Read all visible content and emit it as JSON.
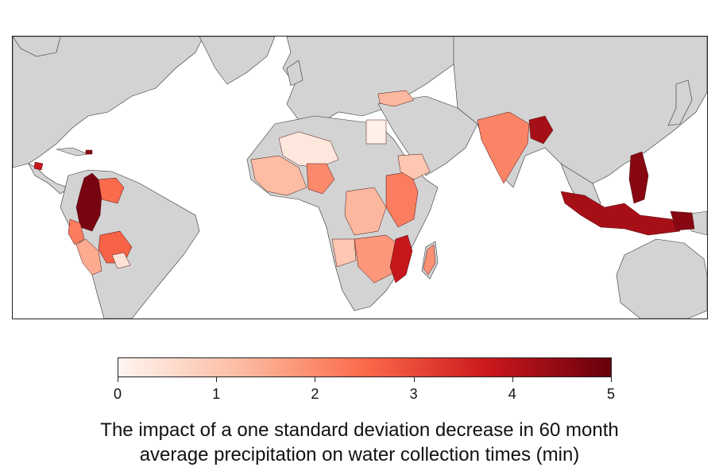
{
  "map": {
    "colors": {
      "land": "#d3d3d3",
      "ocean": "#ffffff",
      "border": "#333333",
      "scale_low": "#fff5f0",
      "scale_mid": "#fb6a4a",
      "scale_high": "#67000d"
    },
    "regions": [
      {
        "name": "colombia",
        "value": 4.8
      },
      {
        "name": "venezuela",
        "value": 2.5
      },
      {
        "name": "ecuador",
        "value": 2.2
      },
      {
        "name": "peru",
        "value": 1.5
      },
      {
        "name": "bolivia",
        "value": 2.6
      },
      {
        "name": "paraguay",
        "value": 0.4
      },
      {
        "name": "guatemala",
        "value": 3.8
      },
      {
        "name": "haiti",
        "value": 4.5
      },
      {
        "name": "west-africa",
        "value": 1.2
      },
      {
        "name": "sahel",
        "value": 0.3
      },
      {
        "name": "nigeria",
        "value": 2.0
      },
      {
        "name": "drc",
        "value": 1.3
      },
      {
        "name": "east-africa",
        "value": 2.2
      },
      {
        "name": "ethiopia",
        "value": 1.0
      },
      {
        "name": "southern-africa",
        "value": 1.8
      },
      {
        "name": "mozambique",
        "value": 3.8
      },
      {
        "name": "angola",
        "value": 1.0
      },
      {
        "name": "madagascar",
        "value": 1.9
      },
      {
        "name": "egypt",
        "value": 0.1
      },
      {
        "name": "turkey",
        "value": 1.3
      },
      {
        "name": "india",
        "value": 2.1
      },
      {
        "name": "bangladesh",
        "value": 4.2
      },
      {
        "name": "philippines",
        "value": 4.6
      },
      {
        "name": "indonesia",
        "value": 4.2
      },
      {
        "name": "papua",
        "value": 4.6
      }
    ]
  },
  "colorbar": {
    "min": 0,
    "max": 5,
    "ticks": [
      "0",
      "1",
      "2",
      "3",
      "4",
      "5"
    ]
  },
  "caption": {
    "line1": "The impact of a one standard deviation decrease in 60 month",
    "line2": "average precipitation on water collection times (min)"
  }
}
